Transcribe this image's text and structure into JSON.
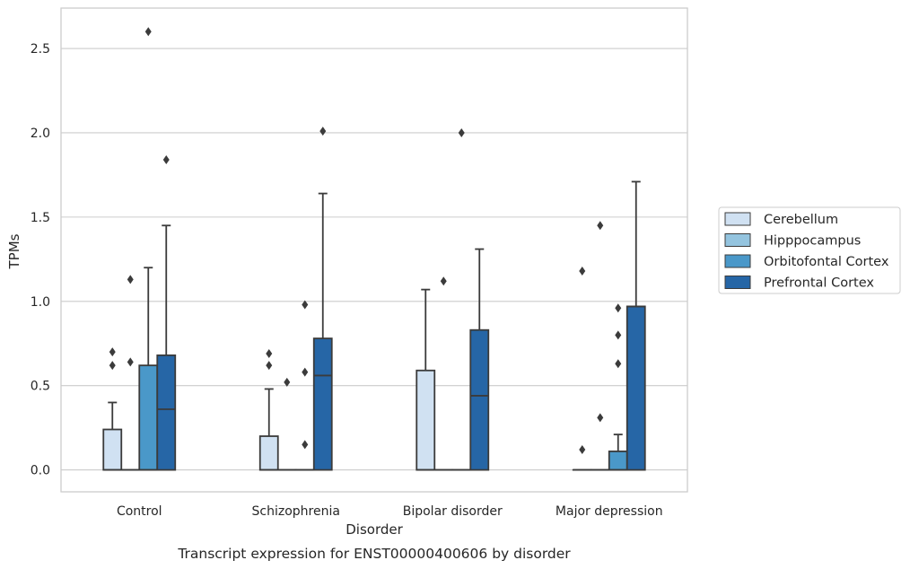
{
  "chart_data": {
    "type": "box",
    "title": "",
    "caption": "Transcript expression for ENST00000400606 by disorder",
    "xlabel": "Disorder",
    "ylabel": "TPMs",
    "ylim": [
      -0.13,
      2.74
    ],
    "yticks": [
      0.0,
      0.5,
      1.0,
      1.5,
      2.0,
      2.5
    ],
    "ytick_labels": [
      "0.0",
      "0.5",
      "1.0",
      "1.5",
      "2.0",
      "2.5"
    ],
    "categories": [
      "Control",
      "Schizophrenia",
      "Bipolar disorder",
      "Major depression"
    ],
    "grid": true,
    "legend_position": "right",
    "colors": {
      "Cerebellum": "#d0e1f2",
      "Hipppocampus": "#94c4df",
      "Orbitofontal Cortex": "#4a98c9",
      "Prefrontal Cortex": "#2666a6"
    },
    "series": [
      {
        "name": "Cerebellum",
        "boxes": [
          {
            "q1": 0.0,
            "median": 0.0,
            "q3": 0.24,
            "whisker_low": 0.0,
            "whisker_high": 0.4,
            "outliers": [
              0.62,
              0.7
            ]
          },
          {
            "q1": 0.0,
            "median": 0.0,
            "q3": 0.2,
            "whisker_low": 0.0,
            "whisker_high": 0.48,
            "outliers": [
              0.62,
              0.69
            ]
          },
          {
            "q1": 0.0,
            "median": 0.0,
            "q3": 0.59,
            "whisker_low": 0.0,
            "whisker_high": 1.07,
            "outliers": []
          },
          {
            "q1": 0.0,
            "median": 0.0,
            "q3": 0.0,
            "whisker_low": 0.0,
            "whisker_high": 0.0,
            "outliers": [
              0.12,
              1.18
            ]
          }
        ]
      },
      {
        "name": "Hipppocampus",
        "boxes": [
          {
            "q1": 0.0,
            "median": 0.0,
            "q3": 0.0,
            "whisker_low": 0.0,
            "whisker_high": 0.0,
            "outliers": [
              0.64,
              1.13
            ]
          },
          {
            "q1": 0.0,
            "median": 0.0,
            "q3": 0.0,
            "whisker_low": 0.0,
            "whisker_high": 0.0,
            "outliers": [
              0.52
            ]
          },
          {
            "q1": 0.0,
            "median": 0.0,
            "q3": 0.0,
            "whisker_low": 0.0,
            "whisker_high": 0.0,
            "outliers": [
              1.12
            ]
          },
          {
            "q1": 0.0,
            "median": 0.0,
            "q3": 0.0,
            "whisker_low": 0.0,
            "whisker_high": 0.0,
            "outliers": [
              0.31,
              1.45
            ]
          }
        ]
      },
      {
        "name": "Orbitofontal Cortex",
        "boxes": [
          {
            "q1": 0.0,
            "median": 0.0,
            "q3": 0.62,
            "whisker_low": 0.0,
            "whisker_high": 1.2,
            "outliers": [
              2.6
            ]
          },
          {
            "q1": 0.0,
            "median": 0.0,
            "q3": 0.0,
            "whisker_low": 0.0,
            "whisker_high": 0.0,
            "outliers": [
              0.15,
              0.58,
              0.98
            ]
          },
          {
            "q1": 0.0,
            "median": 0.0,
            "q3": 0.0,
            "whisker_low": 0.0,
            "whisker_high": 0.0,
            "outliers": [
              2.0
            ]
          },
          {
            "q1": 0.0,
            "median": 0.0,
            "q3": 0.11,
            "whisker_low": 0.0,
            "whisker_high": 0.21,
            "outliers": [
              0.63,
              0.8,
              0.96
            ]
          }
        ]
      },
      {
        "name": "Prefrontal Cortex",
        "boxes": [
          {
            "q1": 0.0,
            "median": 0.36,
            "q3": 0.68,
            "whisker_low": 0.0,
            "whisker_high": 1.45,
            "outliers": [
              1.84
            ]
          },
          {
            "q1": 0.0,
            "median": 0.56,
            "q3": 0.78,
            "whisker_low": 0.0,
            "whisker_high": 1.64,
            "outliers": [
              2.01
            ]
          },
          {
            "q1": 0.0,
            "median": 0.44,
            "q3": 0.83,
            "whisker_low": 0.0,
            "whisker_high": 1.31,
            "outliers": []
          },
          {
            "q1": 0.0,
            "median": 0.97,
            "q3": 0.97,
            "whisker_low": 0.0,
            "whisker_high": 1.71,
            "outliers": []
          }
        ]
      }
    ]
  }
}
